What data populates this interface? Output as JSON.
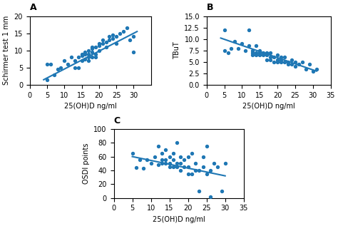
{
  "chart_data": [
    {
      "type": "scatter",
      "title": "A",
      "xlabel": "25(OH)D ng/ml",
      "ylabel": "Schirmer test 1 mm",
      "xlim": [
        0,
        35
      ],
      "ylim": [
        0,
        20
      ],
      "xticks": [
        0,
        5,
        10,
        15,
        20,
        25,
        30
      ],
      "yticks": [
        0,
        5,
        10,
        15,
        20
      ],
      "series": [
        {
          "type": "scatter",
          "marker": "o",
          "x": [
            5,
            5,
            6,
            7,
            8,
            9,
            10,
            11,
            12,
            13,
            13,
            14,
            14,
            15,
            15,
            15,
            16,
            16,
            16,
            17,
            17,
            17,
            17,
            18,
            18,
            18,
            18,
            19,
            19,
            19,
            20,
            20,
            20,
            21,
            21,
            22,
            22,
            23,
            23,
            24,
            24,
            25,
            25,
            26,
            27,
            28,
            29,
            30,
            30
          ],
          "values": [
            1.5,
            6,
            6,
            3,
            4.5,
            5,
            7,
            6,
            8,
            5,
            7,
            8,
            5,
            7,
            8.5,
            9,
            7.5,
            9,
            9.5,
            7,
            8,
            9,
            10,
            8,
            9.5,
            10.5,
            11,
            8,
            9,
            11,
            10,
            11.5,
            12,
            12,
            13,
            11,
            12.5,
            13,
            14,
            13.5,
            14.5,
            12,
            14,
            15,
            15.5,
            16.5,
            13,
            14,
            9.5
          ]
        },
        {
          "type": "line",
          "line_style": "solid",
          "x": [
            4,
            31
          ],
          "values": [
            1.5,
            15.5
          ]
        }
      ]
    },
    {
      "type": "scatter",
      "title": "B",
      "xlabel": "25(OH)D ng/ml",
      "ylabel": "TBuT",
      "xlim": [
        0,
        35
      ],
      "ylim": [
        0.0,
        15.0
      ],
      "xticks": [
        0,
        5,
        10,
        15,
        20,
        25,
        30,
        35
      ],
      "yticks": [
        0.0,
        2.5,
        5.0,
        7.5,
        10.0,
        12.5,
        15.0
      ],
      "series": [
        {
          "type": "scatter",
          "marker": "o",
          "x": [
            5,
            5,
            6,
            7,
            8,
            9,
            10,
            11,
            12,
            12,
            13,
            13,
            13,
            14,
            14,
            14,
            15,
            15,
            15,
            16,
            16,
            17,
            17,
            17,
            18,
            18,
            18,
            19,
            19,
            20,
            20,
            20,
            21,
            21,
            21,
            22,
            22,
            23,
            23,
            24,
            24,
            25,
            25,
            26,
            27,
            28,
            29,
            30,
            31
          ],
          "values": [
            7.5,
            12,
            7,
            8,
            9.5,
            8,
            9,
            7.5,
            8.5,
            12,
            7.5,
            7,
            6.5,
            7,
            6.5,
            8.5,
            7,
            6.5,
            7.5,
            6.5,
            7,
            6.5,
            5.5,
            7,
            5.5,
            6,
            7,
            6,
            5,
            5,
            5.5,
            6.5,
            5,
            5.5,
            6,
            5,
            6,
            4.5,
            5,
            4.5,
            5.5,
            4,
            5,
            4.5,
            5,
            3.5,
            4.5,
            3,
            3.5
          ]
        },
        {
          "type": "line",
          "line_style": "solid",
          "x": [
            4,
            31
          ],
          "values": [
            10.2,
            3.0
          ]
        }
      ]
    },
    {
      "type": "scatter",
      "title": "C",
      "xlabel": "25(OH)D ng/ml",
      "ylabel": "OSDI points",
      "xlim": [
        0,
        35
      ],
      "ylim": [
        0,
        100
      ],
      "xticks": [
        0,
        5,
        10,
        15,
        20,
        25,
        30,
        35
      ],
      "yticks": [
        0,
        20,
        40,
        60,
        80,
        100
      ],
      "series": [
        {
          "type": "scatter",
          "marker": "o",
          "x": [
            5,
            6,
            7,
            8,
            9,
            10,
            11,
            12,
            12,
            13,
            13,
            13,
            14,
            14,
            14,
            15,
            15,
            15,
            16,
            16,
            16,
            17,
            17,
            17,
            18,
            18,
            18,
            19,
            19,
            20,
            20,
            20,
            21,
            21,
            22,
            22,
            23,
            23,
            24,
            24,
            25,
            25,
            26,
            26,
            27,
            28,
            29,
            30
          ],
          "values": [
            65,
            44,
            55,
            43,
            55,
            50,
            60,
            48,
            75,
            50,
            55,
            65,
            50,
            55,
            70,
            45,
            50,
            60,
            45,
            55,
            65,
            45,
            50,
            80,
            40,
            50,
            60,
            45,
            55,
            35,
            45,
            60,
            35,
            65,
            40,
            50,
            40,
            10,
            45,
            60,
            35,
            75,
            2,
            40,
            50,
            45,
            10,
            50
          ]
        },
        {
          "type": "line",
          "line_style": "solid",
          "x": [
            5,
            30
          ],
          "values": [
            60,
            32
          ]
        }
      ]
    }
  ]
}
